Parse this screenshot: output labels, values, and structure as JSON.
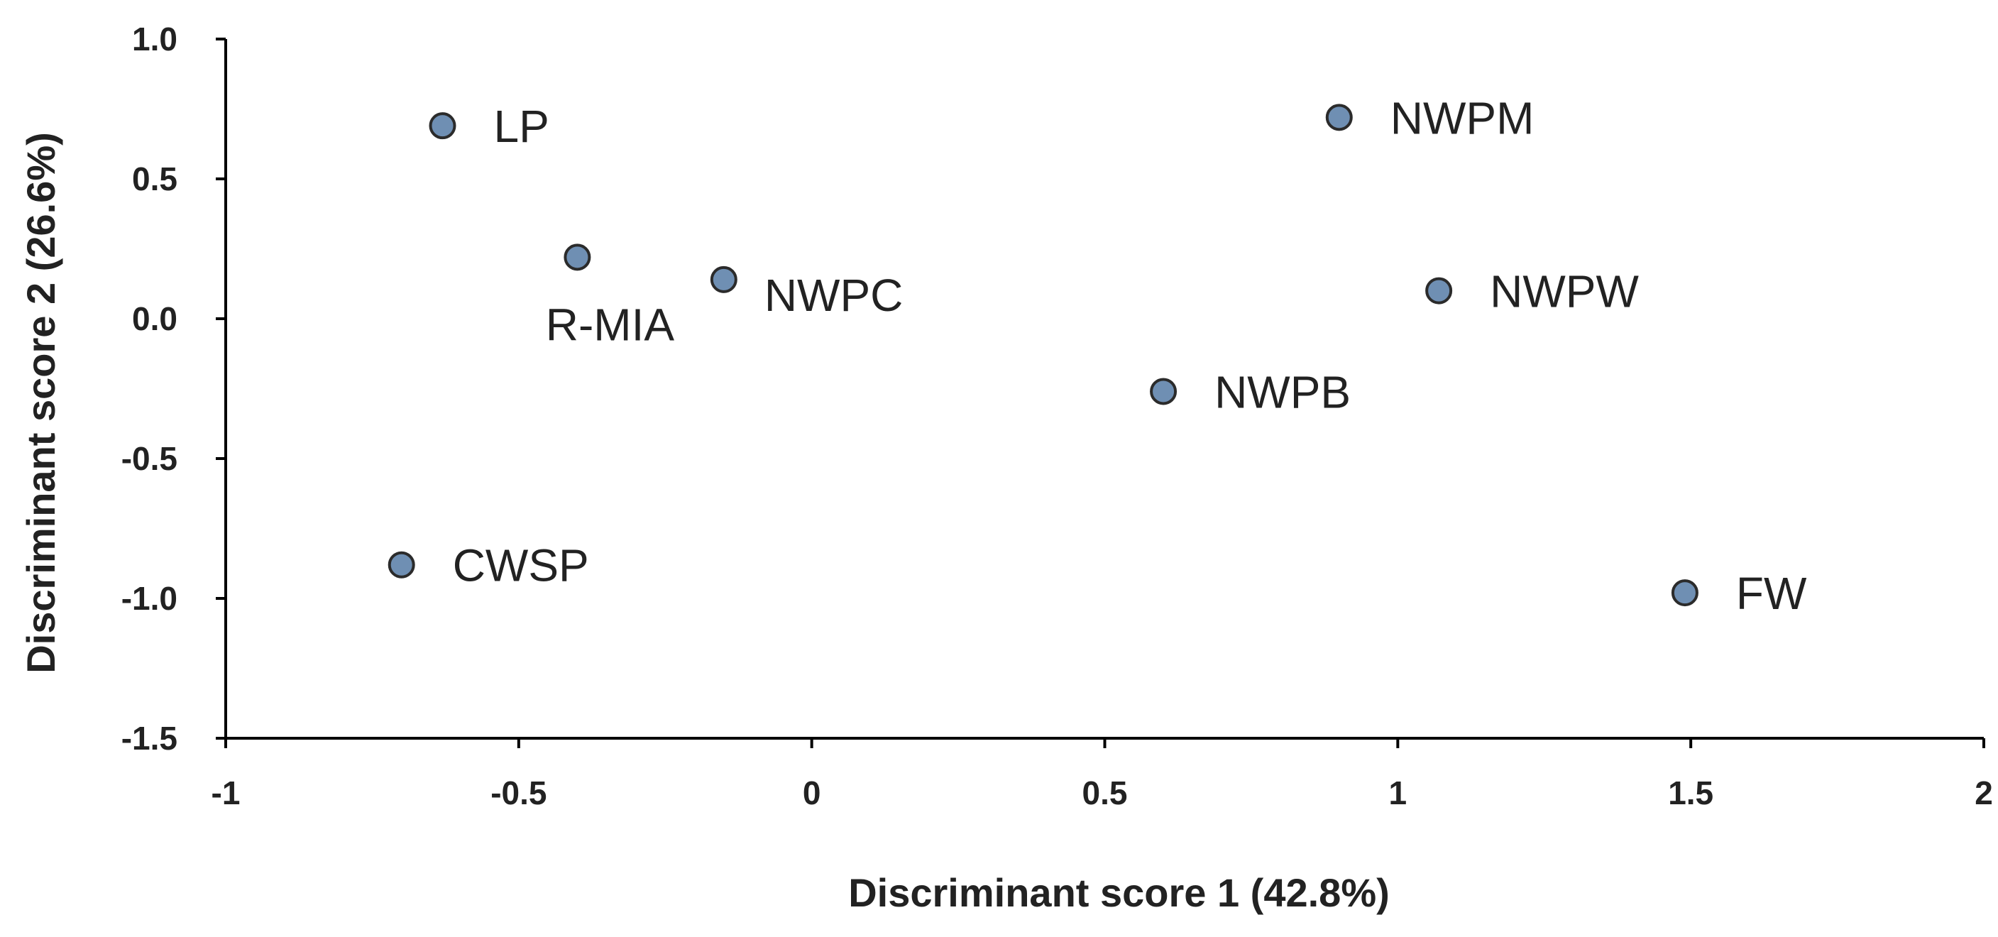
{
  "chart_data": {
    "type": "scatter",
    "title": "",
    "xlabel": "Discriminant score 1 (42.8%)",
    "ylabel": "Discriminant score 2 (26.6%)",
    "xlim": [
      -1,
      2
    ],
    "ylim": [
      -1.5,
      1.0
    ],
    "x_ticks": [
      -1,
      -0.5,
      0,
      0.5,
      1,
      1.5,
      2
    ],
    "x_tick_labels": [
      "-1",
      "-0.5",
      "0",
      "0.5",
      "1",
      "1.5",
      "2"
    ],
    "y_ticks": [
      1.0,
      0.5,
      0.0,
      -0.5,
      -1.0,
      -1.5
    ],
    "y_tick_labels": [
      "1.0",
      "0.5",
      "0.0",
      "-0.5",
      "-1.0",
      "-1.5"
    ],
    "grid": false,
    "legend": "none",
    "marker_color": "#6f8fb3",
    "points": [
      {
        "label": "LP",
        "x": -0.63,
        "y": 0.69,
        "label_pos": "right"
      },
      {
        "label": "R-MIA",
        "x": -0.4,
        "y": 0.22,
        "label_pos": "below"
      },
      {
        "label": "NWPC",
        "x": -0.15,
        "y": 0.14,
        "label_pos": "right-below"
      },
      {
        "label": "CWSP",
        "x": -0.7,
        "y": -0.88,
        "label_pos": "right"
      },
      {
        "label": "NWPM",
        "x": 0.9,
        "y": 0.72,
        "label_pos": "right"
      },
      {
        "label": "NWPW",
        "x": 1.07,
        "y": 0.1,
        "label_pos": "right"
      },
      {
        "label": "NWPB",
        "x": 0.6,
        "y": -0.26,
        "label_pos": "right"
      },
      {
        "label": "FW",
        "x": 1.49,
        "y": -0.98,
        "label_pos": "right"
      }
    ]
  }
}
